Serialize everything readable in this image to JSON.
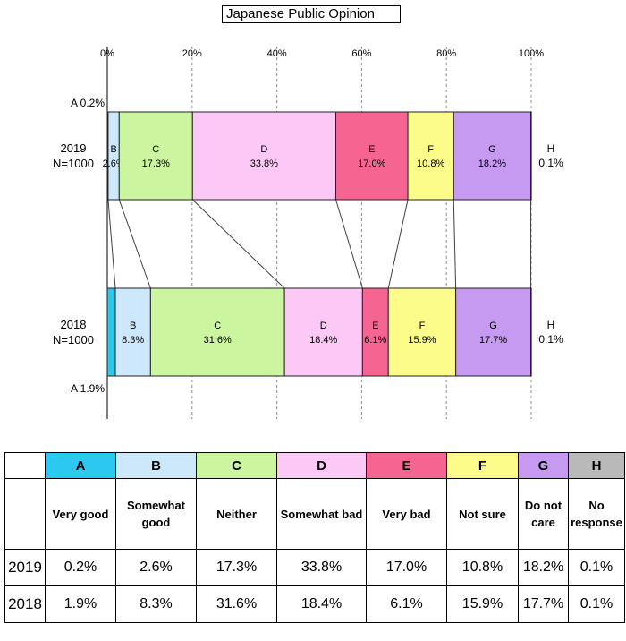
{
  "title": "Japanese Public Opinion",
  "chart_data": {
    "type": "bar",
    "orientation": "horizontal",
    "stacked": true,
    "x_ticks": [
      "0%",
      "20%",
      "40%",
      "60%",
      "80%",
      "100%"
    ],
    "xlim": [
      0,
      100
    ],
    "grid": "vertical dashed",
    "categories": [
      {
        "year_label": "2019",
        "n_label": "N=1000"
      },
      {
        "year_label": "2018",
        "n_label": "N=1000"
      }
    ],
    "series": [
      {
        "name": "A",
        "color": "#2dc8f0",
        "values": [
          0.2,
          1.9
        ],
        "labels": [
          "0.2%",
          "1.9%"
        ]
      },
      {
        "name": "B",
        "color": "#cde8fa",
        "values": [
          2.6,
          8.3
        ],
        "labels": [
          "2.6%",
          "8.3%"
        ]
      },
      {
        "name": "C",
        "color": "#ccf5a0",
        "values": [
          17.3,
          31.6
        ],
        "labels": [
          "17.3%",
          "31.6%"
        ]
      },
      {
        "name": "D",
        "color": "#fcc8f5",
        "values": [
          33.8,
          18.4
        ],
        "labels": [
          "33.8%",
          "18.4%"
        ]
      },
      {
        "name": "E",
        "color": "#f66492",
        "values": [
          17.0,
          6.1
        ],
        "labels": [
          "17.0%",
          "6.1%"
        ]
      },
      {
        "name": "F",
        "color": "#fcfc8a",
        "values": [
          10.8,
          15.9
        ],
        "labels": [
          "10.8%",
          "15.9%"
        ]
      },
      {
        "name": "G",
        "color": "#c59af0",
        "values": [
          18.2,
          17.7
        ],
        "labels": [
          "18.2%",
          "17.7%"
        ]
      },
      {
        "name": "H",
        "color": "#d0d0d0",
        "values": [
          0.1,
          0.1
        ],
        "labels": [
          "0.1%",
          "0.1%"
        ]
      }
    ]
  },
  "legend_table": {
    "columns": [
      {
        "code": "A",
        "desc": "Very good",
        "color": "#2dc8f0"
      },
      {
        "code": "B",
        "desc": "Somewhat good",
        "color": "#cde8fa"
      },
      {
        "code": "C",
        "desc": "Neither",
        "color": "#ccf5a0"
      },
      {
        "code": "D",
        "desc": "Somewhat bad",
        "color": "#fcc8f5"
      },
      {
        "code": "E",
        "desc": "Very bad",
        "color": "#f66492"
      },
      {
        "code": "F",
        "desc": "Not sure",
        "color": "#fcfc8a"
      },
      {
        "code": "G",
        "desc": "Do not care",
        "color": "#c59af0"
      },
      {
        "code": "H",
        "desc": "No response",
        "color": "#b9b9b9"
      }
    ],
    "rows": [
      {
        "year": "2019",
        "values": [
          "0.2%",
          "2.6%",
          "17.3%",
          "33.8%",
          "17.0%",
          "10.8%",
          "18.2%",
          "0.1%"
        ]
      },
      {
        "year": "2018",
        "values": [
          "1.9%",
          "8.3%",
          "31.6%",
          "18.4%",
          "6.1%",
          "15.9%",
          "17.7%",
          "0.1%"
        ]
      }
    ]
  }
}
